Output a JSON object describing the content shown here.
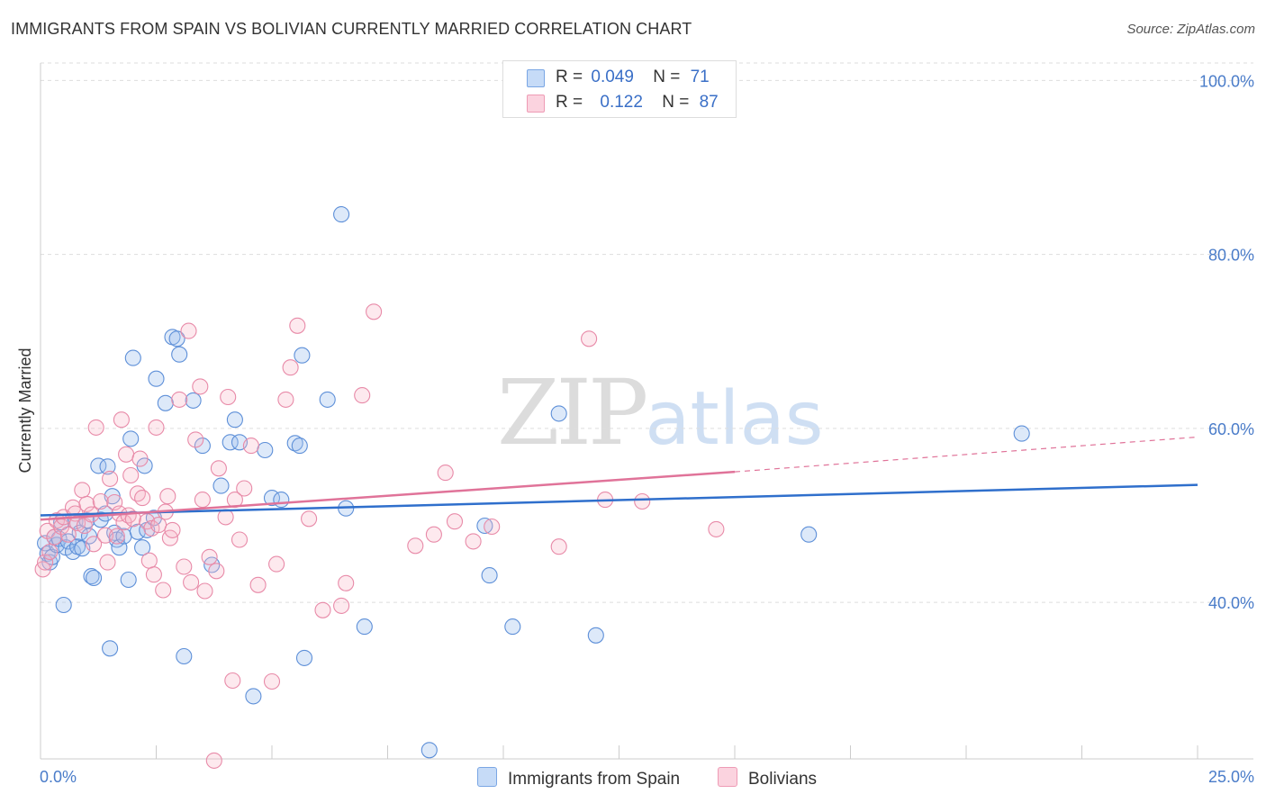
{
  "header": {
    "title": "IMMIGRANTS FROM SPAIN VS BOLIVIAN CURRENTLY MARRIED CORRELATION CHART",
    "source": "Source: ZipAtlas.com"
  },
  "legend": {
    "rows": [
      {
        "r_label": "R =",
        "r_value": "0.049",
        "n_label": "N =",
        "n_value": "71",
        "color": "#9fc1ef"
      },
      {
        "r_label": "R =",
        "r_value": "0.122",
        "n_label": "N =",
        "n_value": "87",
        "color": "#f7b5c8"
      }
    ]
  },
  "watermark": {
    "zip": "ZIP",
    "atlas": "atlas"
  },
  "chart_data": {
    "type": "scatter",
    "title": "IMMIGRANTS FROM SPAIN VS BOLIVIAN CURRENTLY MARRIED CORRELATION CHART",
    "xlabel": "",
    "ylabel": "Currently Married",
    "xlim": [
      0,
      25
    ],
    "ylim": [
      22,
      102
    ],
    "x_tick_labels": [
      "0.0%",
      "25.0%"
    ],
    "y_ticks": [
      40,
      60,
      80,
      100
    ],
    "y_tick_labels": [
      "40.0%",
      "60.0%",
      "80.0%",
      "100.0%"
    ],
    "grid": true,
    "legend_position": "top-center",
    "series": [
      {
        "name": "Immigrants from Spain",
        "color": "#9fc1ef",
        "line_color": "#2f6fcc",
        "trend": {
          "x0": 0,
          "y0": 50.0,
          "x1": 25,
          "y1": 53.5
        },
        "points": [
          [
            0.1,
            46.8
          ],
          [
            0.15,
            45.6
          ],
          [
            0.2,
            44.6
          ],
          [
            0.25,
            45.2
          ],
          [
            0.3,
            47.5
          ],
          [
            0.35,
            46.6
          ],
          [
            0.4,
            47.3
          ],
          [
            0.45,
            49.2
          ],
          [
            0.5,
            39.7
          ],
          [
            0.55,
            46.3
          ],
          [
            0.6,
            47.0
          ],
          [
            0.7,
            45.8
          ],
          [
            0.75,
            49.3
          ],
          [
            0.8,
            46.4
          ],
          [
            0.85,
            48.0
          ],
          [
            0.9,
            46.2
          ],
          [
            1.0,
            49.4
          ],
          [
            1.05,
            47.6
          ],
          [
            1.1,
            43.0
          ],
          [
            1.15,
            42.8
          ],
          [
            1.25,
            55.7
          ],
          [
            1.3,
            49.5
          ],
          [
            1.4,
            50.2
          ],
          [
            1.45,
            55.6
          ],
          [
            1.5,
            34.7
          ],
          [
            1.55,
            52.2
          ],
          [
            1.6,
            48.0
          ],
          [
            1.65,
            47.2
          ],
          [
            1.7,
            46.3
          ],
          [
            1.8,
            47.6
          ],
          [
            1.9,
            42.6
          ],
          [
            1.95,
            58.8
          ],
          [
            2.0,
            68.1
          ],
          [
            2.1,
            48.1
          ],
          [
            2.2,
            46.3
          ],
          [
            2.3,
            48.3
          ],
          [
            2.25,
            55.7
          ],
          [
            2.45,
            49.7
          ],
          [
            2.5,
            65.7
          ],
          [
            2.7,
            62.9
          ],
          [
            2.85,
            70.5
          ],
          [
            2.95,
            70.3
          ],
          [
            3.0,
            68.5
          ],
          [
            3.1,
            33.8
          ],
          [
            3.3,
            63.2
          ],
          [
            3.5,
            58.0
          ],
          [
            3.7,
            44.3
          ],
          [
            3.9,
            53.4
          ],
          [
            4.1,
            58.4
          ],
          [
            4.2,
            61.0
          ],
          [
            4.3,
            58.4
          ],
          [
            4.6,
            29.2
          ],
          [
            4.85,
            57.5
          ],
          [
            5.0,
            52.0
          ],
          [
            5.2,
            51.8
          ],
          [
            5.5,
            58.3
          ],
          [
            5.6,
            58.0
          ],
          [
            5.65,
            68.4
          ],
          [
            5.7,
            33.6
          ],
          [
            6.2,
            63.3
          ],
          [
            6.5,
            84.6
          ],
          [
            6.6,
            50.8
          ],
          [
            7.0,
            37.2
          ],
          [
            8.4,
            23.0
          ],
          [
            9.6,
            48.8
          ],
          [
            9.7,
            43.1
          ],
          [
            10.2,
            37.2
          ],
          [
            11.2,
            61.7
          ],
          [
            12.0,
            36.2
          ],
          [
            16.6,
            47.8
          ],
          [
            21.2,
            59.4
          ]
        ]
      },
      {
        "name": "Bolivians",
        "color": "#f7b5c8",
        "line_color": "#e07399",
        "trend": {
          "x0": 0,
          "y0": 49.5,
          "x1": 15,
          "y1": 55.0
        },
        "trend_dashed": {
          "x0": 15,
          "y0": 55.0,
          "x1": 25,
          "y1": 59.0
        },
        "points": [
          [
            0.05,
            43.8
          ],
          [
            0.1,
            44.6
          ],
          [
            0.15,
            48.2
          ],
          [
            0.2,
            45.8
          ],
          [
            0.3,
            47.5
          ],
          [
            0.35,
            49.4
          ],
          [
            0.45,
            48.7
          ],
          [
            0.5,
            49.8
          ],
          [
            0.6,
            47.8
          ],
          [
            0.7,
            50.9
          ],
          [
            0.75,
            50.2
          ],
          [
            0.8,
            49.1
          ],
          [
            0.9,
            52.9
          ],
          [
            0.95,
            48.8
          ],
          [
            1.0,
            51.3
          ],
          [
            1.1,
            50.1
          ],
          [
            1.15,
            46.7
          ],
          [
            1.2,
            60.1
          ],
          [
            1.3,
            51.6
          ],
          [
            1.4,
            47.7
          ],
          [
            1.45,
            44.6
          ],
          [
            1.5,
            54.2
          ],
          [
            1.6,
            51.5
          ],
          [
            1.7,
            50.2
          ],
          [
            1.65,
            47.6
          ],
          [
            1.75,
            61.0
          ],
          [
            1.8,
            49.2
          ],
          [
            1.85,
            57.0
          ],
          [
            1.9,
            50.0
          ],
          [
            1.95,
            54.6
          ],
          [
            2.0,
            49.6
          ],
          [
            2.1,
            52.5
          ],
          [
            2.15,
            56.5
          ],
          [
            2.2,
            52.0
          ],
          [
            2.3,
            49.3
          ],
          [
            2.35,
            44.8
          ],
          [
            2.4,
            48.5
          ],
          [
            2.45,
            43.2
          ],
          [
            2.5,
            60.1
          ],
          [
            2.55,
            48.9
          ],
          [
            2.65,
            41.4
          ],
          [
            2.7,
            50.4
          ],
          [
            2.75,
            52.2
          ],
          [
            2.8,
            47.4
          ],
          [
            2.85,
            48.3
          ],
          [
            3.0,
            63.3
          ],
          [
            3.1,
            44.1
          ],
          [
            3.2,
            71.2
          ],
          [
            3.25,
            42.3
          ],
          [
            3.35,
            58.7
          ],
          [
            3.45,
            64.8
          ],
          [
            3.5,
            51.8
          ],
          [
            3.55,
            41.3
          ],
          [
            3.65,
            45.2
          ],
          [
            3.75,
            21.8
          ],
          [
            3.8,
            43.6
          ],
          [
            3.85,
            55.4
          ],
          [
            4.0,
            49.8
          ],
          [
            4.05,
            63.6
          ],
          [
            4.15,
            31.0
          ],
          [
            4.2,
            51.8
          ],
          [
            4.3,
            47.2
          ],
          [
            4.4,
            53.1
          ],
          [
            4.55,
            58.0
          ],
          [
            4.7,
            42.0
          ],
          [
            5.0,
            30.9
          ],
          [
            5.1,
            44.4
          ],
          [
            5.3,
            63.3
          ],
          [
            5.4,
            67.0
          ],
          [
            5.55,
            71.8
          ],
          [
            5.8,
            49.6
          ],
          [
            6.1,
            39.1
          ],
          [
            6.5,
            39.6
          ],
          [
            6.6,
            42.2
          ],
          [
            6.95,
            63.8
          ],
          [
            7.2,
            73.4
          ],
          [
            8.1,
            46.5
          ],
          [
            8.5,
            47.8
          ],
          [
            8.75,
            54.9
          ],
          [
            8.95,
            49.3
          ],
          [
            9.35,
            47.0
          ],
          [
            9.75,
            48.7
          ],
          [
            11.2,
            46.4
          ],
          [
            11.85,
            70.3
          ],
          [
            12.2,
            51.8
          ],
          [
            13.0,
            51.6
          ],
          [
            14.6,
            48.4
          ]
        ]
      }
    ]
  }
}
